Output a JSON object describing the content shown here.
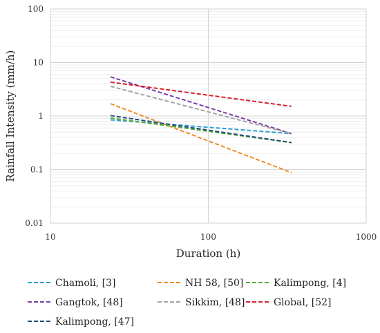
{
  "chart_data": {
    "type": "line",
    "title": "",
    "xlabel": "Duration (h)",
    "ylabel": "Rainfall Intensity (mm/h)",
    "x_scale": "log",
    "y_scale": "log",
    "xlim": [
      10,
      1000
    ],
    "ylim": [
      0.01,
      100
    ],
    "x_ticks": [
      "10",
      "100",
      "1000"
    ],
    "y_ticks": [
      "0.01",
      "0.1",
      "1",
      "10",
      "100"
    ],
    "grid": true,
    "legend_position": "bottom",
    "series": [
      {
        "name": "Chamoli, [3]",
        "color": "#2e9fd0",
        "x": [
          24,
          336
        ],
        "y": [
          0.85,
          0.47
        ]
      },
      {
        "name": "NH 58, [50]",
        "color": "#f08a24",
        "x": [
          24,
          336
        ],
        "y": [
          1.7,
          0.088
        ]
      },
      {
        "name": "Kalimpong, [4]",
        "color": "#5aaa3c",
        "x": [
          24,
          336
        ],
        "y": [
          0.92,
          0.32
        ]
      },
      {
        "name": "Gangtok, [48]",
        "color": "#7a3ea8",
        "x": [
          24,
          336
        ],
        "y": [
          5.4,
          0.47
        ]
      },
      {
        "name": "Sikkim, [48]",
        "color": "#a3a3a3",
        "x": [
          24,
          336
        ],
        "y": [
          3.6,
          0.47
        ]
      },
      {
        "name": "Global, [52]",
        "color": "#d91e2a",
        "x": [
          24,
          336
        ],
        "y": [
          4.3,
          1.52
        ]
      },
      {
        "name": "Kalimpong, [47]",
        "color": "#1f4e79",
        "x": [
          24,
          336
        ],
        "y": [
          1.02,
          0.32
        ]
      }
    ]
  }
}
